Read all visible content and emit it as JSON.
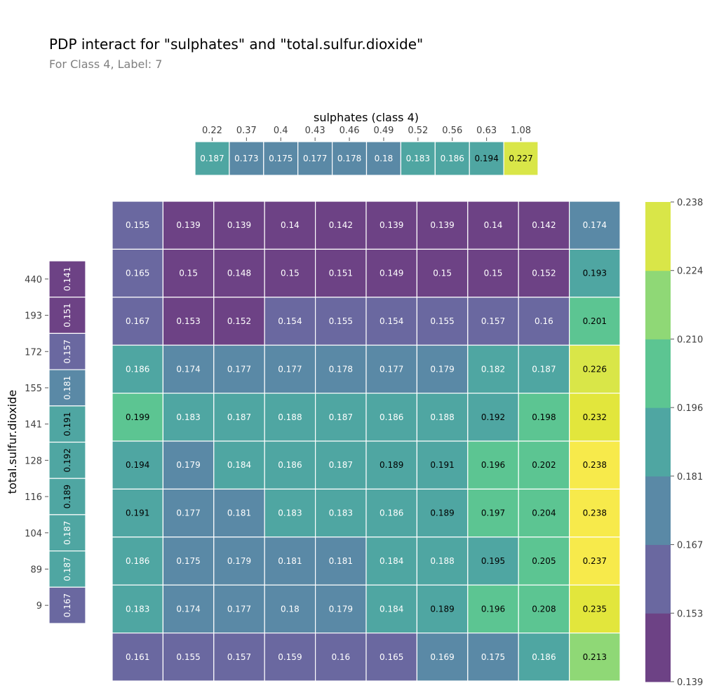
{
  "chart_data": {
    "type": "heatmap",
    "title": "PDP interact for \"sulphates\" and \"total.sulfur.dioxide\"",
    "subtitle": "For Class 4, Label: 7",
    "top": {
      "label": "sulphates (class 4)",
      "ticks": [
        "0.22",
        "0.37",
        "0.4",
        "0.43",
        "0.46",
        "0.49",
        "0.52",
        "0.56",
        "0.63",
        "1.08"
      ],
      "values": [
        0.187,
        0.173,
        0.175,
        0.177,
        0.178,
        0.18,
        0.183,
        0.186,
        0.194,
        0.227
      ],
      "value_labels": [
        "0.187",
        "0.173",
        "0.175",
        "0.177",
        "0.178",
        "0.18",
        "0.183",
        "0.186",
        "0.194",
        "0.227"
      ]
    },
    "left": {
      "label": "total.sulfur.dioxide",
      "ticks": [
        "440",
        "193",
        "172",
        "155",
        "141",
        "128",
        "116",
        "104",
        "89",
        "9"
      ],
      "values": [
        0.141,
        0.151,
        0.157,
        0.181,
        0.191,
        0.192,
        0.189,
        0.187,
        0.187,
        0.167
      ],
      "value_labels": [
        "0.141",
        "0.151",
        "0.157",
        "0.181",
        "0.191",
        "0.192",
        "0.189",
        "0.187",
        "0.187",
        "0.167"
      ]
    },
    "grid": {
      "values": [
        [
          0.155,
          0.139,
          0.139,
          0.14,
          0.142,
          0.139,
          0.139,
          0.14,
          0.142,
          0.174
        ],
        [
          0.165,
          0.15,
          0.148,
          0.15,
          0.151,
          0.149,
          0.15,
          0.15,
          0.152,
          0.193
        ],
        [
          0.167,
          0.153,
          0.152,
          0.154,
          0.155,
          0.154,
          0.155,
          0.157,
          0.16,
          0.201
        ],
        [
          0.186,
          0.174,
          0.177,
          0.177,
          0.178,
          0.177,
          0.179,
          0.182,
          0.187,
          0.226
        ],
        [
          0.199,
          0.183,
          0.187,
          0.188,
          0.187,
          0.186,
          0.188,
          0.192,
          0.198,
          0.232
        ],
        [
          0.194,
          0.179,
          0.184,
          0.186,
          0.187,
          0.189,
          0.191,
          0.196,
          0.202,
          0.238
        ],
        [
          0.191,
          0.177,
          0.181,
          0.183,
          0.183,
          0.186,
          0.189,
          0.197,
          0.204,
          0.238
        ],
        [
          0.186,
          0.175,
          0.179,
          0.181,
          0.181,
          0.184,
          0.188,
          0.195,
          0.205,
          0.237
        ],
        [
          0.183,
          0.174,
          0.177,
          0.18,
          0.179,
          0.184,
          0.189,
          0.196,
          0.208,
          0.235
        ],
        [
          0.161,
          0.155,
          0.157,
          0.159,
          0.16,
          0.165,
          0.169,
          0.175,
          0.186,
          0.213
        ]
      ],
      "labels": [
        [
          "0.155",
          "0.139",
          "0.139",
          "0.14",
          "0.142",
          "0.139",
          "0.139",
          "0.14",
          "0.142",
          "0.174"
        ],
        [
          "0.165",
          "0.15",
          "0.148",
          "0.15",
          "0.151",
          "0.149",
          "0.15",
          "0.15",
          "0.152",
          "0.193"
        ],
        [
          "0.167",
          "0.153",
          "0.152",
          "0.154",
          "0.155",
          "0.154",
          "0.155",
          "0.157",
          "0.16",
          "0.201"
        ],
        [
          "0.186",
          "0.174",
          "0.177",
          "0.177",
          "0.178",
          "0.177",
          "0.179",
          "0.182",
          "0.187",
          "0.226"
        ],
        [
          "0.199",
          "0.183",
          "0.187",
          "0.188",
          "0.187",
          "0.186",
          "0.188",
          "0.192",
          "0.198",
          "0.232"
        ],
        [
          "0.194",
          "0.179",
          "0.184",
          "0.186",
          "0.187",
          "0.189",
          "0.191",
          "0.196",
          "0.202",
          "0.238"
        ],
        [
          "0.191",
          "0.177",
          "0.181",
          "0.183",
          "0.183",
          "0.186",
          "0.189",
          "0.197",
          "0.204",
          "0.238"
        ],
        [
          "0.186",
          "0.175",
          "0.179",
          "0.181",
          "0.181",
          "0.184",
          "0.188",
          "0.195",
          "0.205",
          "0.237"
        ],
        [
          "0.183",
          "0.174",
          "0.177",
          "0.18",
          "0.179",
          "0.184",
          "0.189",
          "0.196",
          "0.208",
          "0.235"
        ],
        [
          "0.161",
          "0.155",
          "0.157",
          "0.159",
          "0.16",
          "0.165",
          "0.169",
          "0.175",
          "0.186",
          "0.213"
        ]
      ]
    },
    "colorbar": {
      "ticks": [
        "0.238",
        "0.224",
        "0.210",
        "0.196",
        "0.181",
        "0.167",
        "0.153",
        "0.139"
      ],
      "range": [
        0.139,
        0.238
      ],
      "bands": 7
    },
    "colors": {
      "title": "#000000",
      "subtitle": "#808080",
      "tick": "#404040",
      "cell_border": "#ffffff",
      "text_light": "#ffffff",
      "text_dark": "#000000"
    }
  }
}
